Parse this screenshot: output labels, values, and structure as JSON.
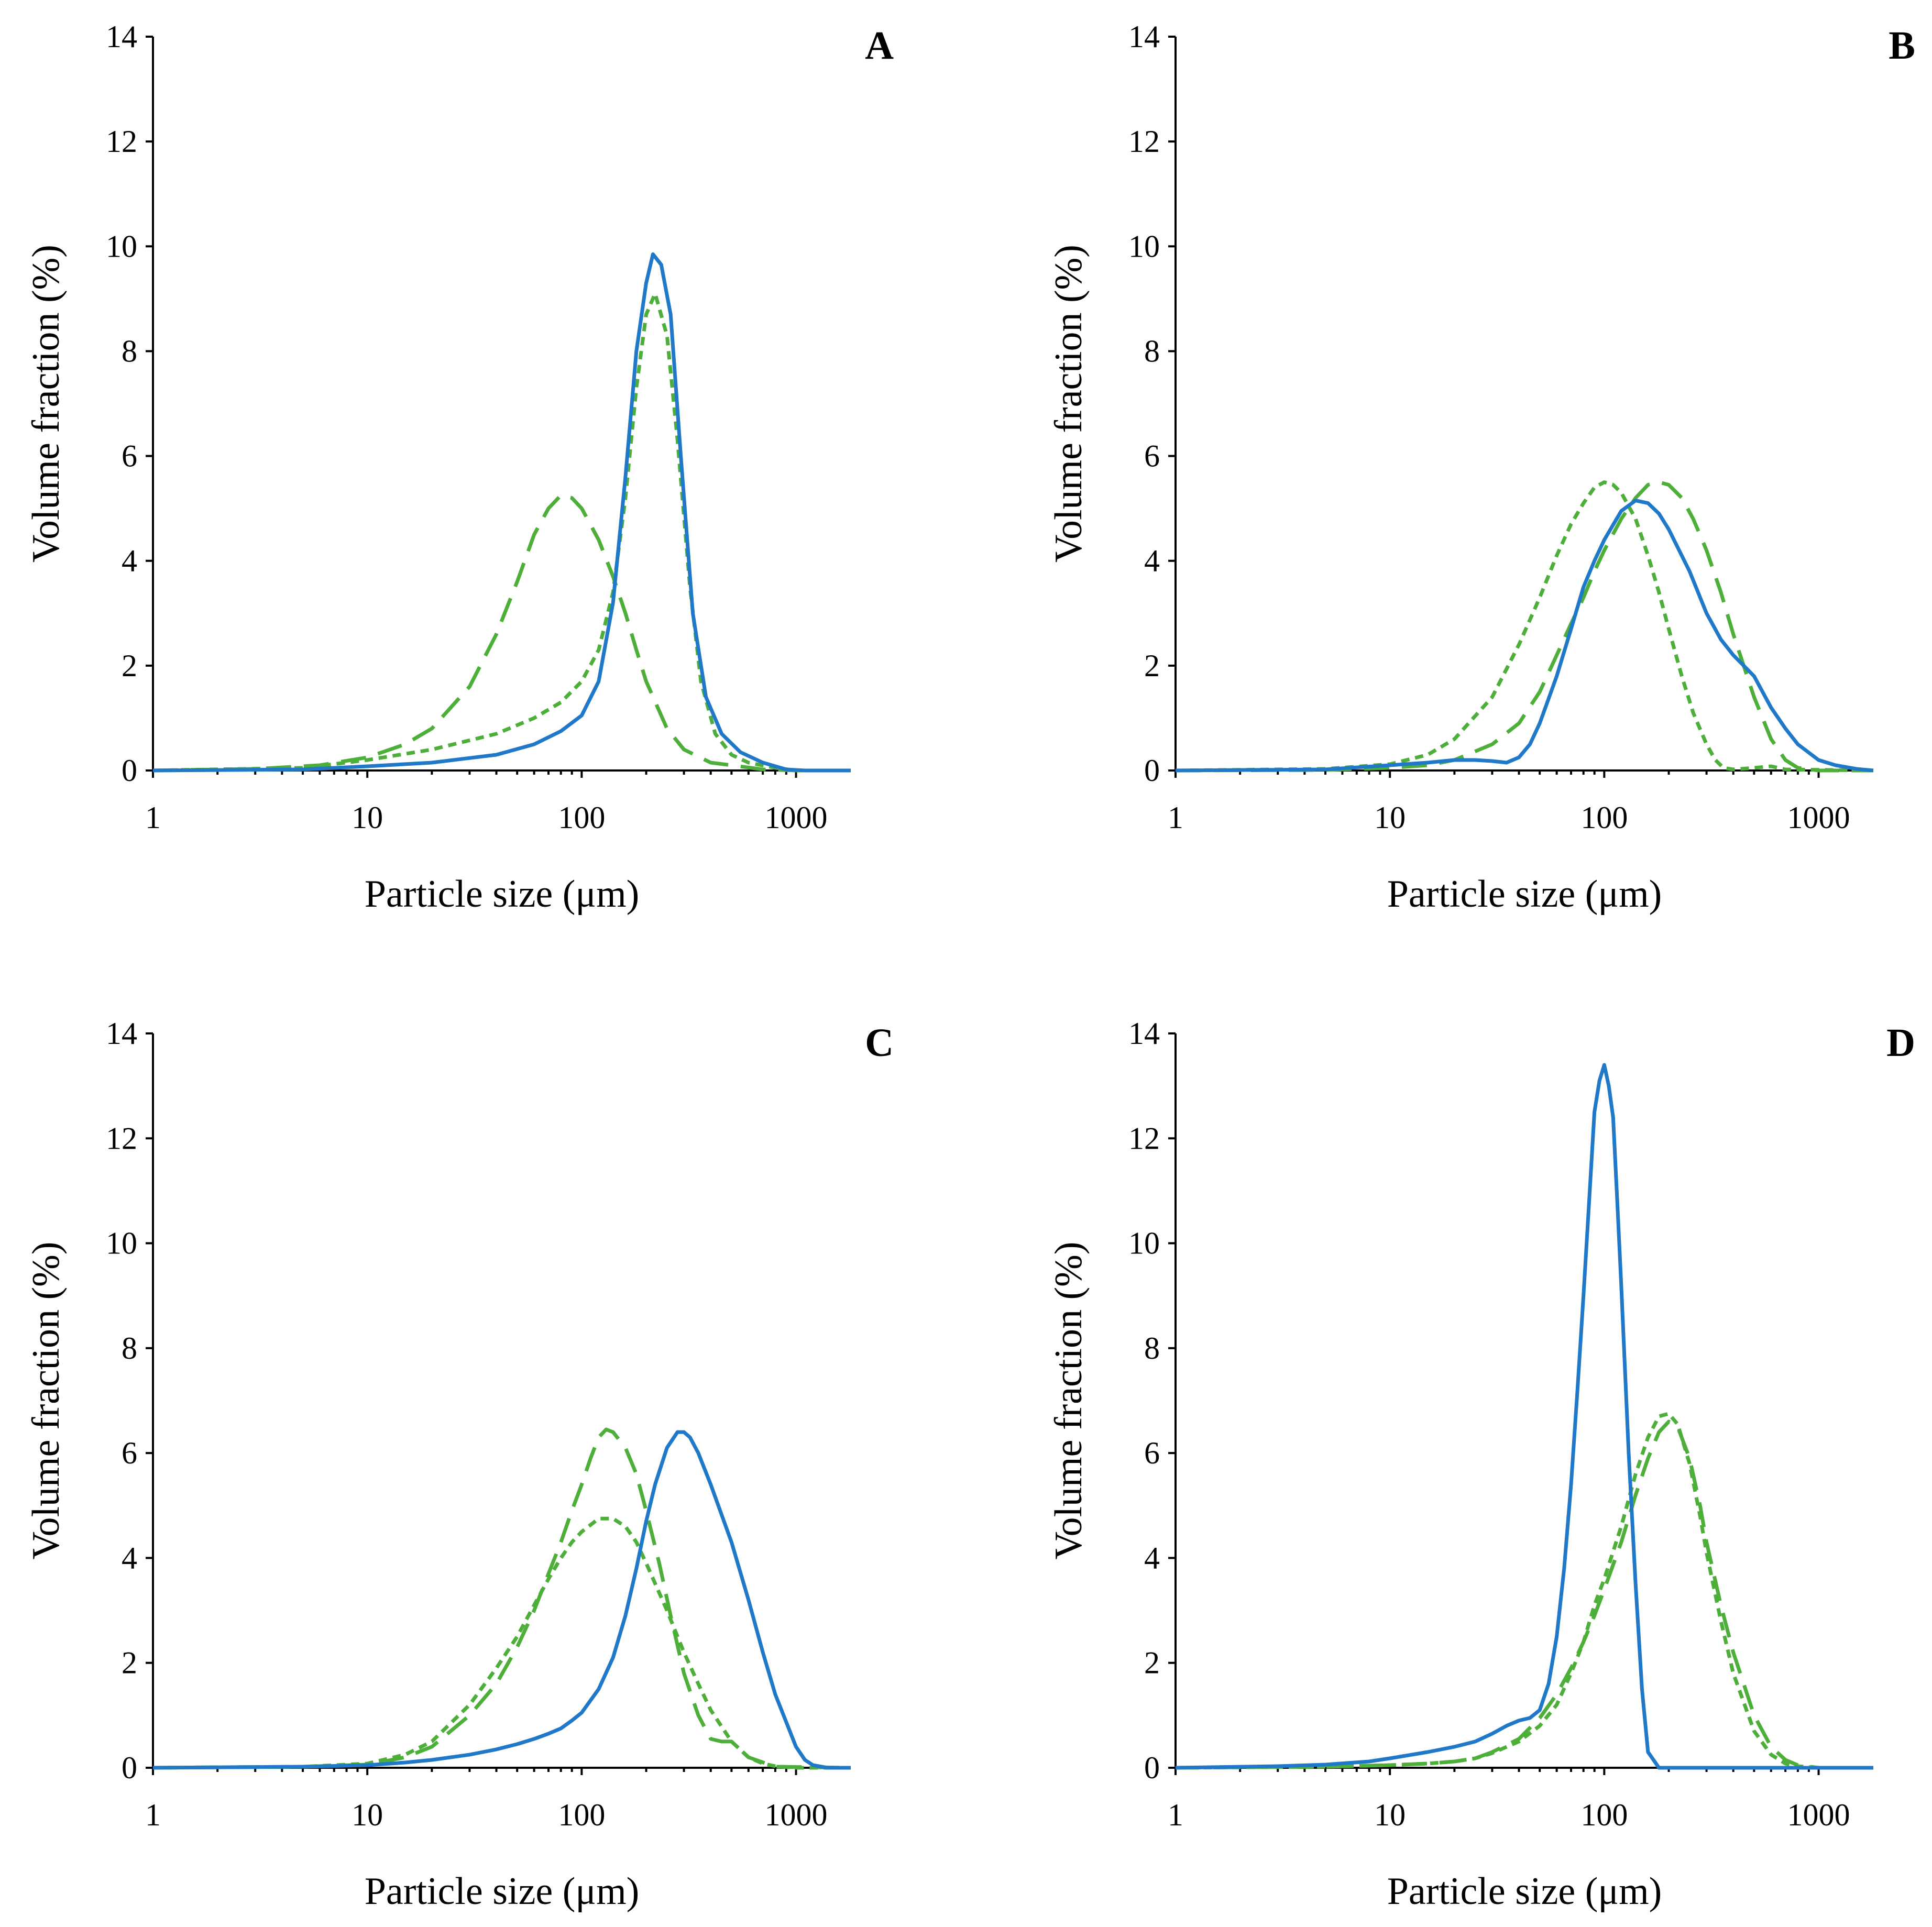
{
  "colors": {
    "blue": "#1F78C8",
    "green": "#4DAF3A"
  },
  "chart_data": [
    {
      "panel_label": "A",
      "type": "line",
      "xscale": "log",
      "xlim": [
        1,
        1800
      ],
      "ylim": [
        0,
        14
      ],
      "xticks": [
        1,
        10,
        100,
        1000
      ],
      "xtick_labels": [
        "1",
        "10",
        "100",
        "1000"
      ],
      "yticks": [
        0,
        2,
        4,
        6,
        8,
        10,
        12,
        14
      ],
      "ytick_labels": [
        "0",
        "2",
        "4",
        "6",
        "8",
        "10",
        "12",
        "14"
      ],
      "xlabel": "Particle size (μm)",
      "ylabel": "Volume fraction (%)",
      "series": [
        {
          "name": "solid",
          "color": "#1F78C8",
          "style": "solid",
          "x": [
            1,
            5,
            10,
            20,
            40,
            60,
            80,
            100,
            120,
            140,
            160,
            180,
            200,
            215,
            235,
            260,
            290,
            330,
            380,
            450,
            550,
            700,
            900,
            1100,
            1800
          ],
          "y": [
            0,
            0.02,
            0.08,
            0.15,
            0.3,
            0.5,
            0.75,
            1.05,
            1.7,
            3.2,
            5.6,
            8.0,
            9.3,
            9.85,
            9.65,
            8.7,
            6.0,
            3.0,
            1.4,
            0.7,
            0.35,
            0.15,
            0.02,
            0,
            0
          ]
        },
        {
          "name": "short-dash",
          "color": "#4DAF3A",
          "style": "short-dash",
          "x": [
            1,
            5,
            10,
            20,
            40,
            60,
            80,
            100,
            120,
            140,
            160,
            180,
            200,
            220,
            250,
            280,
            320,
            360,
            420,
            500,
            600,
            800,
            1000,
            1800
          ],
          "y": [
            0,
            0.05,
            0.2,
            0.4,
            0.7,
            1.0,
            1.3,
            1.7,
            2.3,
            3.4,
            5.2,
            7.3,
            8.7,
            9.1,
            8.3,
            6.3,
            3.5,
            1.7,
            0.7,
            0.3,
            0.15,
            0.05,
            0,
            0
          ]
        },
        {
          "name": "long-dash",
          "color": "#4DAF3A",
          "style": "long-dash",
          "x": [
            1,
            3,
            6,
            10,
            15,
            20,
            30,
            40,
            50,
            60,
            70,
            80,
            90,
            100,
            120,
            140,
            160,
            180,
            200,
            250,
            300,
            400,
            500,
            700,
            1000,
            1800
          ],
          "y": [
            0,
            0.03,
            0.1,
            0.25,
            0.5,
            0.8,
            1.6,
            2.6,
            3.6,
            4.5,
            5.0,
            5.25,
            5.2,
            5.0,
            4.4,
            3.7,
            3.0,
            2.3,
            1.7,
            0.8,
            0.4,
            0.15,
            0.1,
            0.02,
            0,
            0
          ]
        }
      ]
    },
    {
      "panel_label": "B",
      "type": "line",
      "xscale": "log",
      "xlim": [
        1,
        1800
      ],
      "ylim": [
        0,
        14
      ],
      "xticks": [
        1,
        10,
        100,
        1000
      ],
      "xtick_labels": [
        "1",
        "10",
        "100",
        "1000"
      ],
      "yticks": [
        0,
        2,
        4,
        6,
        8,
        10,
        12,
        14
      ],
      "ytick_labels": [
        "0",
        "2",
        "4",
        "6",
        "8",
        "10",
        "12",
        "14"
      ],
      "xlabel": "Particle size (μm)",
      "ylabel": "Volume fraction (%)",
      "series": [
        {
          "name": "solid",
          "color": "#1F78C8",
          "style": "solid",
          "x": [
            1,
            5,
            10,
            15,
            20,
            25,
            30,
            35,
            40,
            45,
            50,
            60,
            70,
            80,
            90,
            100,
            120,
            140,
            160,
            180,
            200,
            250,
            300,
            350,
            400,
            500,
            600,
            700,
            800,
            1000,
            1200,
            1500,
            1800
          ],
          "y": [
            0,
            0.02,
            0.1,
            0.15,
            0.2,
            0.2,
            0.18,
            0.15,
            0.25,
            0.5,
            0.9,
            1.8,
            2.7,
            3.5,
            4.0,
            4.4,
            4.95,
            5.15,
            5.1,
            4.9,
            4.6,
            3.8,
            3.0,
            2.5,
            2.2,
            1.8,
            1.2,
            0.8,
            0.5,
            0.2,
            0.1,
            0.03,
            0
          ]
        },
        {
          "name": "long-dash",
          "color": "#4DAF3A",
          "style": "long-dash",
          "x": [
            1,
            5,
            10,
            15,
            20,
            30,
            40,
            50,
            60,
            70,
            80,
            90,
            100,
            120,
            140,
            160,
            180,
            200,
            230,
            260,
            300,
            350,
            400,
            500,
            600,
            700,
            800,
            1000,
            1800
          ],
          "y": [
            0,
            0.01,
            0.05,
            0.1,
            0.2,
            0.5,
            0.9,
            1.5,
            2.2,
            2.8,
            3.3,
            3.8,
            4.2,
            4.8,
            5.2,
            5.45,
            5.5,
            5.45,
            5.2,
            4.8,
            4.2,
            3.4,
            2.6,
            1.4,
            0.6,
            0.2,
            0.05,
            0,
            0
          ]
        },
        {
          "name": "short-dash",
          "color": "#4DAF3A",
          "style": "short-dash",
          "x": [
            1,
            5,
            10,
            15,
            20,
            30,
            40,
            50,
            60,
            70,
            80,
            90,
            100,
            110,
            120,
            140,
            160,
            180,
            200,
            230,
            260,
            300,
            330,
            360,
            400,
            500,
            600,
            700,
            1800
          ],
          "y": [
            0,
            0.03,
            0.12,
            0.3,
            0.6,
            1.4,
            2.4,
            3.3,
            4.1,
            4.7,
            5.1,
            5.4,
            5.5,
            5.45,
            5.3,
            4.8,
            4.1,
            3.4,
            2.7,
            1.8,
            1.1,
            0.5,
            0.2,
            0.05,
            0.02,
            0.05,
            0.08,
            0.02,
            0
          ]
        }
      ]
    },
    {
      "panel_label": "C",
      "type": "line",
      "xscale": "log",
      "xlim": [
        1,
        1800
      ],
      "ylim": [
        0,
        14
      ],
      "xticks": [
        1,
        10,
        100,
        1000
      ],
      "xtick_labels": [
        "1",
        "10",
        "100",
        "1000"
      ],
      "yticks": [
        0,
        2,
        4,
        6,
        8,
        10,
        12,
        14
      ],
      "ytick_labels": [
        "0",
        "2",
        "4",
        "6",
        "8",
        "10",
        "12",
        "14"
      ],
      "xlabel": "Particle size (μm)",
      "ylabel": "Volume fraction (%)",
      "series": [
        {
          "name": "solid",
          "color": "#1F78C8",
          "style": "solid",
          "x": [
            1,
            5,
            10,
            15,
            20,
            30,
            40,
            50,
            60,
            70,
            80,
            90,
            100,
            120,
            140,
            160,
            180,
            200,
            220,
            250,
            280,
            300,
            320,
            350,
            400,
            500,
            600,
            700,
            800,
            1000,
            1100,
            1200,
            1400,
            1800
          ],
          "y": [
            0,
            0.02,
            0.05,
            0.1,
            0.15,
            0.25,
            0.35,
            0.45,
            0.55,
            0.65,
            0.75,
            0.9,
            1.05,
            1.5,
            2.1,
            2.9,
            3.8,
            4.7,
            5.4,
            6.1,
            6.4,
            6.4,
            6.3,
            6.0,
            5.4,
            4.3,
            3.2,
            2.2,
            1.4,
            0.4,
            0.15,
            0.05,
            0,
            0
          ]
        },
        {
          "name": "long-dash",
          "color": "#4DAF3A",
          "style": "long-dash",
          "x": [
            1,
            5,
            10,
            15,
            20,
            30,
            40,
            50,
            60,
            70,
            80,
            90,
            100,
            110,
            120,
            130,
            140,
            160,
            180,
            200,
            230,
            260,
            300,
            350,
            400,
            450,
            500,
            600,
            800,
            1800
          ],
          "y": [
            0,
            0.02,
            0.06,
            0.2,
            0.4,
            1.0,
            1.6,
            2.3,
            3.0,
            3.7,
            4.3,
            4.9,
            5.4,
            5.9,
            6.3,
            6.45,
            6.4,
            6.1,
            5.6,
            4.9,
            3.9,
            2.9,
            1.8,
            1.0,
            0.55,
            0.5,
            0.5,
            0.2,
            0.02,
            0
          ]
        },
        {
          "name": "short-dash",
          "color": "#4DAF3A",
          "style": "short-dash",
          "x": [
            1,
            5,
            10,
            15,
            20,
            30,
            40,
            50,
            60,
            70,
            80,
            90,
            100,
            120,
            140,
            160,
            180,
            200,
            250,
            300,
            350,
            400,
            500,
            600,
            700,
            800,
            1000,
            1800
          ],
          "y": [
            0,
            0.02,
            0.08,
            0.25,
            0.5,
            1.2,
            1.9,
            2.5,
            3.1,
            3.6,
            4.0,
            4.3,
            4.5,
            4.75,
            4.75,
            4.6,
            4.3,
            3.9,
            3.0,
            2.2,
            1.6,
            1.1,
            0.5,
            0.2,
            0.08,
            0.03,
            0,
            0
          ]
        }
      ]
    },
    {
      "panel_label": "D",
      "type": "line",
      "xscale": "log",
      "xlim": [
        1,
        1800
      ],
      "ylim": [
        0,
        14
      ],
      "xticks": [
        1,
        10,
        100,
        1000
      ],
      "xtick_labels": [
        "1",
        "10",
        "100",
        "1000"
      ],
      "yticks": [
        0,
        2,
        4,
        6,
        8,
        10,
        12,
        14
      ],
      "ytick_labels": [
        "0",
        "2",
        "4",
        "6",
        "8",
        "10",
        "12",
        "14"
      ],
      "xlabel": "Particle size (μm)",
      "ylabel": "Volume fraction (%)",
      "series": [
        {
          "name": "solid",
          "color": "#1F78C8",
          "style": "solid",
          "x": [
            1,
            3,
            5,
            8,
            10,
            15,
            20,
            25,
            30,
            35,
            40,
            45,
            50,
            55,
            60,
            65,
            70,
            75,
            80,
            85,
            90,
            95,
            100,
            105,
            110,
            115,
            120,
            130,
            140,
            150,
            160,
            180,
            200,
            1800
          ],
          "y": [
            0,
            0.03,
            0.06,
            0.12,
            0.18,
            0.3,
            0.4,
            0.5,
            0.65,
            0.8,
            0.9,
            0.95,
            1.1,
            1.6,
            2.5,
            3.8,
            5.4,
            7.2,
            9.0,
            10.8,
            12.5,
            13.1,
            13.4,
            13.0,
            12.4,
            10.8,
            9.2,
            6.0,
            3.5,
            1.5,
            0.3,
            0,
            0,
            0
          ]
        },
        {
          "name": "long-dash",
          "color": "#4DAF3A",
          "style": "long-dash",
          "x": [
            1,
            5,
            10,
            15,
            20,
            25,
            30,
            40,
            50,
            60,
            70,
            80,
            90,
            100,
            120,
            140,
            160,
            180,
            200,
            220,
            250,
            280,
            300,
            350,
            400,
            500,
            600,
            700,
            800,
            1000,
            1800
          ],
          "y": [
            0,
            0.02,
            0.05,
            0.08,
            0.12,
            0.18,
            0.3,
            0.55,
            0.95,
            1.4,
            1.9,
            2.4,
            2.9,
            3.4,
            4.3,
            5.2,
            5.9,
            6.4,
            6.6,
            6.5,
            5.9,
            5.0,
            4.3,
            3.1,
            2.2,
            1.0,
            0.4,
            0.15,
            0.05,
            0,
            0
          ]
        },
        {
          "name": "short-dash",
          "color": "#4DAF3A",
          "style": "short-dash",
          "x": [
            1,
            5,
            10,
            15,
            20,
            25,
            30,
            40,
            50,
            60,
            70,
            80,
            90,
            100,
            120,
            140,
            160,
            180,
            200,
            220,
            250,
            280,
            300,
            350,
            400,
            500,
            600,
            700,
            800,
            1000,
            1800
          ],
          "y": [
            0,
            0.02,
            0.05,
            0.08,
            0.12,
            0.18,
            0.28,
            0.5,
            0.8,
            1.2,
            1.8,
            2.4,
            3.1,
            3.6,
            4.6,
            5.6,
            6.3,
            6.7,
            6.75,
            6.55,
            5.8,
            4.8,
            4.1,
            2.8,
            1.8,
            0.7,
            0.25,
            0.08,
            0.03,
            0,
            0
          ]
        }
      ]
    }
  ]
}
